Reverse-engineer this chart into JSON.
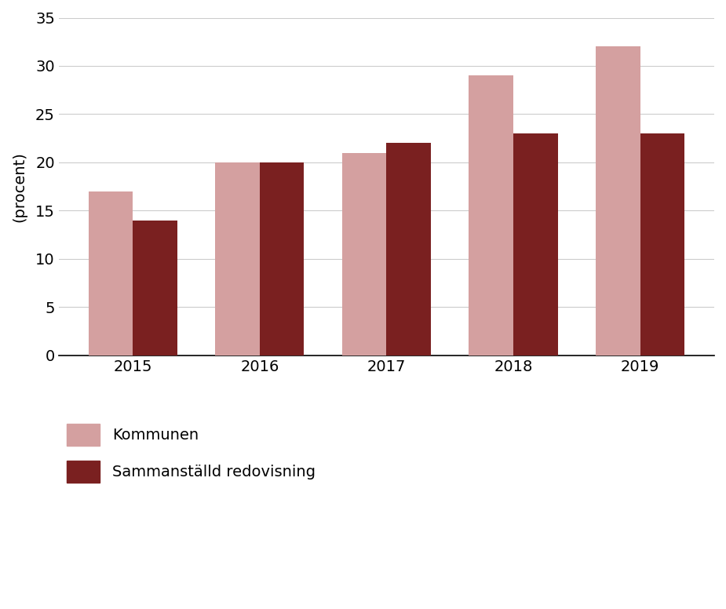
{
  "years": [
    "2015",
    "2016",
    "2017",
    "2018",
    "2019"
  ],
  "kommunen": [
    17,
    20,
    21,
    29,
    32
  ],
  "sammanstalld": [
    14,
    20,
    22,
    23,
    23
  ],
  "color_kommunen": "#d4a0a0",
  "color_sammanstalld": "#7a2020",
  "ylabel": "(procent)",
  "ylim": [
    0,
    35
  ],
  "yticks": [
    0,
    5,
    10,
    15,
    20,
    25,
    30,
    35
  ],
  "legend_kommunen": "Kommunen",
  "legend_sammanstalld": "Sammanställd redovisning",
  "bar_width": 0.35,
  "tick_fontsize": 14,
  "legend_fontsize": 14,
  "ylabel_fontsize": 14
}
